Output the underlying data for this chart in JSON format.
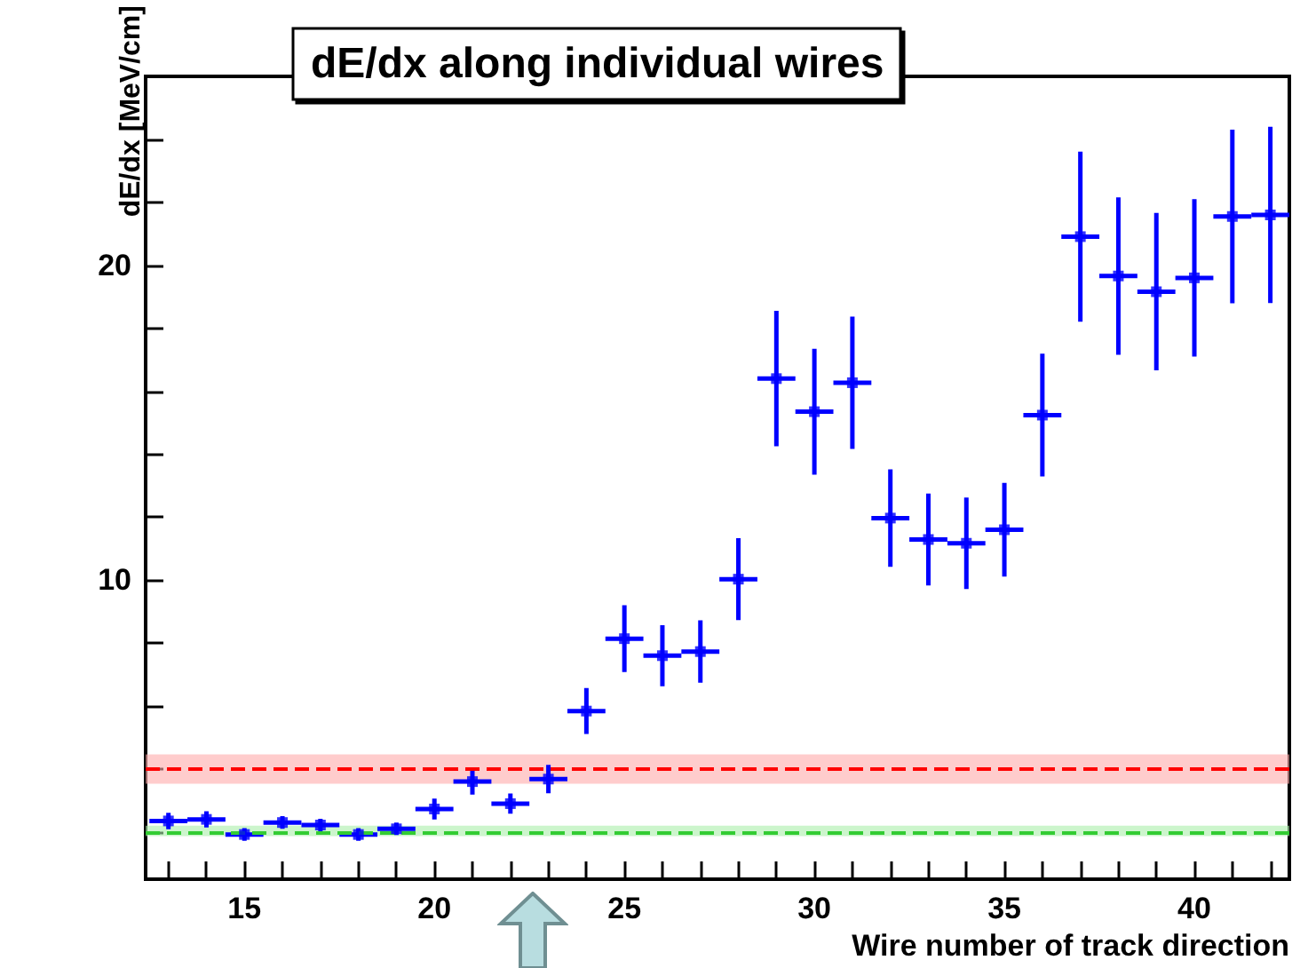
{
  "chart_data": {
    "type": "scatter",
    "title": "dE/dx along individual wires",
    "xlabel": "Wire number of track direction",
    "ylabel": "dE/dx [MeV/cm]",
    "x": [
      13,
      14,
      15,
      16,
      17,
      18,
      19,
      20,
      21,
      22,
      23,
      24,
      25,
      26,
      27,
      28,
      29,
      30,
      31,
      32,
      33,
      34,
      35,
      36,
      37,
      38,
      39,
      40,
      41,
      42
    ],
    "series": [
      {
        "color": "#0000ff",
        "values": [
          2.35,
          2.4,
          1.92,
          2.3,
          2.22,
          1.92,
          2.1,
          2.73,
          3.6,
          2.9,
          3.68,
          5.84,
          8.14,
          7.6,
          7.73,
          10.03,
          16.4,
          15.35,
          16.27,
          11.97,
          11.29,
          11.17,
          11.6,
          15.24,
          20.91,
          19.66,
          19.16,
          19.6,
          21.55,
          21.6
        ],
        "errors": [
          0.26,
          0.26,
          0.2,
          0.2,
          0.2,
          0.2,
          0.2,
          0.33,
          0.41,
          0.32,
          0.45,
          0.73,
          1.06,
          0.97,
          0.99,
          1.3,
          2.15,
          2.0,
          2.1,
          1.55,
          1.46,
          1.45,
          1.49,
          1.95,
          2.7,
          2.5,
          2.5,
          2.5,
          2.76,
          2.8
        ],
        "xerrors": [
          0.5,
          0.5,
          0.5,
          0.5,
          0.5,
          0.5,
          0.5,
          0.5,
          0.5,
          0.5,
          0.5,
          0.5,
          0.5,
          0.5,
          0.5,
          0.5,
          0.5,
          0.5,
          0.5,
          0.5,
          0.5,
          0.5,
          0.5,
          0.5,
          0.5,
          0.5,
          0.5,
          0.5,
          0.5,
          0.5
        ]
      }
    ],
    "marker": "square",
    "xlim": [
      12.4,
      42.5
    ],
    "xticks": [
      {
        "value": 13,
        "label": null
      },
      {
        "value": 14,
        "label": null
      },
      15,
      {
        "value": 16,
        "label": null
      },
      {
        "value": 17,
        "label": null
      },
      {
        "value": 18,
        "label": null
      },
      {
        "value": 19,
        "label": null
      },
      20,
      {
        "value": 21,
        "label": null
      },
      {
        "value": 22,
        "label": null
      },
      {
        "value": 23,
        "label": null
      },
      {
        "value": 24,
        "label": null
      },
      25,
      {
        "value": 26,
        "label": null
      },
      {
        "value": 27,
        "label": null
      },
      {
        "value": 28,
        "label": null
      },
      {
        "value": 29,
        "label": null
      },
      30,
      {
        "value": 31,
        "label": null
      },
      {
        "value": 32,
        "label": null
      },
      {
        "value": 33,
        "label": null
      },
      {
        "value": 34,
        "label": null
      },
      35,
      {
        "value": 36,
        "label": null
      },
      {
        "value": 37,
        "label": null
      },
      {
        "value": 38,
        "label": null
      },
      {
        "value": 39,
        "label": null
      },
      40,
      {
        "value": 41,
        "label": null
      },
      {
        "value": 42,
        "label": null
      }
    ],
    "ylim": [
      0.5,
      26
    ],
    "yticks": [
      {
        "value": 2,
        "label": null
      },
      {
        "value": 4,
        "label": null
      },
      {
        "value": 6,
        "label": null
      },
      {
        "value": 8,
        "label": null
      },
      10,
      {
        "value": 12,
        "label": null
      },
      {
        "value": 14,
        "label": null
      },
      {
        "value": 16,
        "label": null
      },
      {
        "value": 18,
        "label": null
      },
      20,
      {
        "value": 22,
        "label": null
      },
      {
        "value": 24,
        "label": null
      }
    ],
    "ref_lines": [
      {
        "axis": "y",
        "value": 4.0,
        "color": "#ff0000",
        "line_style": "dashed"
      },
      {
        "axis": "y",
        "value": 2.0,
        "color": "#33cc33",
        "line_style": "dashed"
      }
    ],
    "bands": [
      {
        "axis": "y",
        "from": 3.53,
        "to": 4.46,
        "color": "#ffaaaa"
      },
      {
        "axis": "y",
        "from": 1.87,
        "to": 2.2,
        "color": "#aaeeaa"
      }
    ],
    "grid": false
  }
}
